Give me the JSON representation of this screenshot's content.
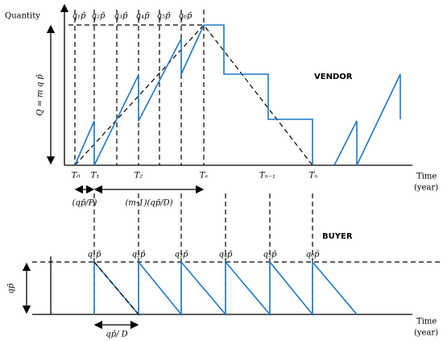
{
  "y_axis_label": "Quantity",
  "vendor": {
    "title": "VENDOR",
    "total_quantity": "Q = m q p̄",
    "batch_labels": [
      "q₁p̄",
      "q₂p̄",
      "q₃p̄",
      "q₄p̄",
      "q₅p̄",
      "q₆p̄"
    ],
    "time_labels": [
      "T₀",
      "T₁",
      "T₂",
      "Tₑ",
      "Tₙ₋₁",
      "Tₙ"
    ],
    "interval_labels": [
      "(qp̄/P)",
      "(m-1)(qp̄/D)"
    ],
    "x_axis_label": [
      "Time",
      "(year)"
    ]
  },
  "buyer": {
    "title": "BUYER",
    "lot_size": "qp̄",
    "batch_labels": [
      "q₁p̄",
      "q₂p̄",
      "q₃p̄",
      "q₄p̄",
      "q₅p̄",
      "q₆p̄"
    ],
    "interval_label": "qp̄/ D",
    "x_axis_label": [
      "Time",
      "(year)"
    ]
  }
}
